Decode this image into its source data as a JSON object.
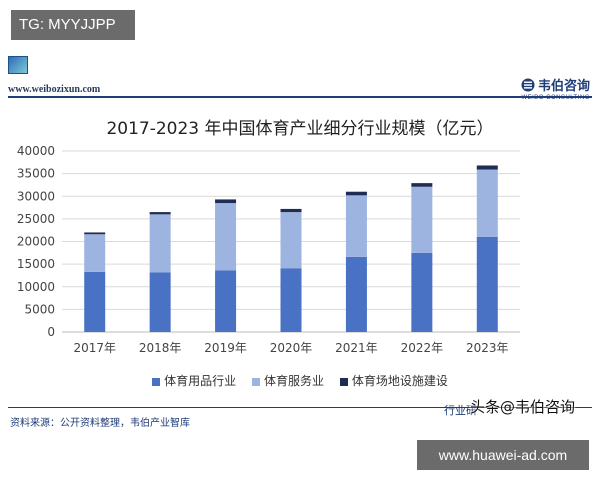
{
  "tg_badge": "TG: MYYJJPP",
  "site_url": "www.weibozixun.com",
  "brand": {
    "name": "韦伯咨询",
    "sub": "WEIBO CONSULTING"
  },
  "source_note": "资料来源：公开资料整理，韦伯产业智库",
  "footer_right": "行业研",
  "overlay_text": "头条@韦伯咨询",
  "url_badge": "www.huawei-ad.com",
  "colors": {
    "series1": "#4a72c4",
    "series2": "#9db3e0",
    "series3": "#1f2d55",
    "brand": "#1f3e78"
  },
  "chart_data": {
    "type": "bar",
    "stacked": true,
    "title": "2017-2023 年中国体育产业细分行业规模（亿元）",
    "categories": [
      "2017年",
      "2018年",
      "2019年",
      "2020年",
      "2021年",
      "2022年",
      "2023年"
    ],
    "series": [
      {
        "name": "体育用品行业",
        "values": [
          13300,
          13200,
          13600,
          14100,
          16600,
          17500,
          21000
        ]
      },
      {
        "name": "体育服务业",
        "values": [
          8300,
          12800,
          14900,
          12400,
          13600,
          14600,
          14900
        ]
      },
      {
        "name": "体育场地设施建设",
        "values": [
          400,
          500,
          800,
          700,
          800,
          800,
          900
        ]
      }
    ],
    "y_ticks": [
      "0",
      "5000",
      "10000",
      "15000",
      "20000",
      "25000",
      "30000",
      "35000",
      "40000"
    ],
    "ylim": [
      0,
      40000
    ],
    "xlabel": "",
    "ylabel": "",
    "grid": true,
    "legend_position": "bottom"
  }
}
